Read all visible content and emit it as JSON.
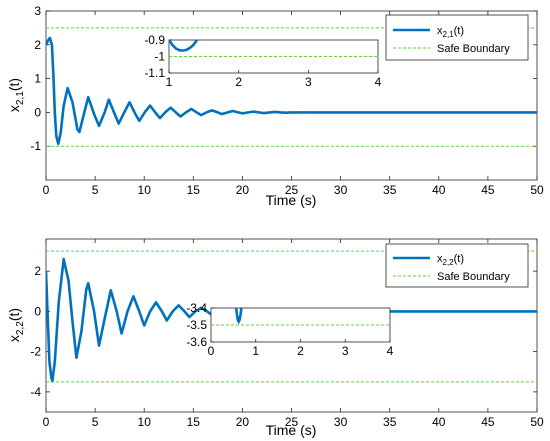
{
  "chart_data": [
    {
      "type": "line",
      "xlabel": "Time (s)",
      "ylabel_main": "x",
      "ylabel_sub": "2,1",
      "ylabel_tail": "(t)",
      "xlim": [
        0,
        50
      ],
      "ylim": [
        -2,
        3
      ],
      "x_ticks": [
        "0",
        "5",
        "10",
        "15",
        "20",
        "25",
        "30",
        "35",
        "40",
        "45",
        "50"
      ],
      "y_ticks": [
        "-1",
        "0",
        "1",
        "2",
        "3"
      ],
      "y_tick_values": [
        -1,
        0,
        1,
        2,
        3
      ],
      "series": [
        {
          "name_main": "x",
          "name_sub": "2,1",
          "name_tail": "(t)",
          "color": "#0072BD",
          "style": "solid",
          "points": [
            [
              0,
              2.0
            ],
            [
              0.25,
              2.15
            ],
            [
              0.4,
              2.2
            ],
            [
              0.6,
              2.0
            ],
            [
              0.75,
              1.1
            ],
            [
              0.9,
              0.0
            ],
            [
              1.05,
              -0.7
            ],
            [
              1.25,
              -0.93
            ],
            [
              1.5,
              -0.6
            ],
            [
              1.8,
              0.2
            ],
            [
              2.2,
              0.72
            ],
            [
              2.7,
              0.3
            ],
            [
              3.2,
              -0.5
            ],
            [
              3.4,
              -0.58
            ],
            [
              3.9,
              0.0
            ],
            [
              4.3,
              0.45
            ],
            [
              4.9,
              -0.05
            ],
            [
              5.4,
              -0.4
            ],
            [
              6.0,
              0.02
            ],
            [
              6.4,
              0.38
            ],
            [
              7.0,
              -0.05
            ],
            [
              7.4,
              -0.33
            ],
            [
              8.0,
              0.02
            ],
            [
              8.5,
              0.3
            ],
            [
              9.1,
              -0.05
            ],
            [
              9.5,
              -0.25
            ],
            [
              10.1,
              0.02
            ],
            [
              10.6,
              0.2
            ],
            [
              11.2,
              -0.03
            ],
            [
              11.6,
              -0.17
            ],
            [
              12.2,
              0.02
            ],
            [
              12.7,
              0.14
            ],
            [
              13.3,
              -0.02
            ],
            [
              13.7,
              -0.12
            ],
            [
              14.3,
              0.01
            ],
            [
              14.8,
              0.1
            ],
            [
              15.4,
              -0.01
            ],
            [
              15.8,
              -0.08
            ],
            [
              16.4,
              0.01
            ],
            [
              16.9,
              0.06
            ],
            [
              17.5,
              0.0
            ],
            [
              17.9,
              -0.05
            ],
            [
              18.5,
              0.0
            ],
            [
              19.0,
              0.04
            ],
            [
              19.6,
              0.0
            ],
            [
              20.0,
              -0.03
            ],
            [
              20.6,
              0.0
            ],
            [
              21.1,
              0.025
            ],
            [
              21.7,
              0.0
            ],
            [
              22.2,
              -0.02
            ],
            [
              22.8,
              0.0
            ],
            [
              23.3,
              0.015
            ],
            [
              23.9,
              0.0
            ],
            [
              24.4,
              -0.01
            ],
            [
              25.0,
              0.0
            ],
            [
              50,
              0.0
            ]
          ]
        },
        {
          "name": "Safe Boundary",
          "color": "#55DD33",
          "style": "dashed",
          "hlines": [
            2.5,
            -1
          ]
        }
      ],
      "legend_position": "top-right",
      "inset": {
        "xlim": [
          1,
          4
        ],
        "ylim": [
          -1.1,
          -0.9
        ],
        "x_ticks": [
          "1",
          "2",
          "3",
          "4"
        ],
        "y_ticks": [
          "-0.9",
          "-1",
          "-1.1"
        ],
        "y_tick_values": [
          -0.9,
          -1,
          -1.1
        ],
        "boundary": -1,
        "points": [
          [
            1.0,
            -0.9
          ],
          [
            1.05,
            -0.93
          ],
          [
            1.1,
            -0.952
          ],
          [
            1.15,
            -0.962
          ],
          [
            1.2,
            -0.964
          ],
          [
            1.25,
            -0.96
          ],
          [
            1.3,
            -0.948
          ],
          [
            1.35,
            -0.93
          ],
          [
            1.4,
            -0.9
          ]
        ]
      }
    },
    {
      "type": "line",
      "xlabel": "Time (s)",
      "ylabel_main": "x",
      "ylabel_sub": "2,2",
      "ylabel_tail": "(t)",
      "xlim": [
        0,
        50
      ],
      "ylim": [
        -5,
        3.6
      ],
      "x_ticks": [
        "0",
        "5",
        "10",
        "15",
        "20",
        "25",
        "30",
        "35",
        "40",
        "45",
        "50"
      ],
      "y_ticks": [
        "-4",
        "-2",
        "0",
        "2"
      ],
      "y_tick_values": [
        -4,
        -2,
        0,
        2
      ],
      "series": [
        {
          "name_main": "x",
          "name_sub": "2,2",
          "name_tail": "(t)",
          "color": "#0072BD",
          "style": "solid",
          "points": [
            [
              0,
              2.0
            ],
            [
              0.15,
              0.0
            ],
            [
              0.35,
              -2.5
            ],
            [
              0.55,
              -3.3
            ],
            [
              0.65,
              -3.45
            ],
            [
              0.9,
              -2.5
            ],
            [
              1.3,
              0.5
            ],
            [
              1.8,
              2.6
            ],
            [
              2.3,
              1.5
            ],
            [
              2.7,
              -0.5
            ],
            [
              3.1,
              -2.3
            ],
            [
              3.6,
              -1.0
            ],
            [
              4.1,
              1.1
            ],
            [
              4.3,
              1.4
            ],
            [
              4.9,
              0.0
            ],
            [
              5.4,
              -1.7
            ],
            [
              6.0,
              -0.3
            ],
            [
              6.6,
              1.05
            ],
            [
              7.2,
              0.0
            ],
            [
              7.7,
              -1.1
            ],
            [
              8.3,
              0.0
            ],
            [
              8.9,
              0.75
            ],
            [
              9.5,
              0.0
            ],
            [
              10.0,
              -0.7
            ],
            [
              10.6,
              0.0
            ],
            [
              11.2,
              0.45
            ],
            [
              11.8,
              0.0
            ],
            [
              12.3,
              -0.45
            ],
            [
              12.9,
              0.0
            ],
            [
              13.5,
              0.3
            ],
            [
              14.1,
              0.0
            ],
            [
              14.6,
              -0.28
            ],
            [
              15.2,
              0.0
            ],
            [
              15.8,
              0.18
            ],
            [
              16.4,
              0.0
            ],
            [
              16.9,
              -0.18
            ],
            [
              17.5,
              0.0
            ],
            [
              18.1,
              0.12
            ],
            [
              18.7,
              0.0
            ],
            [
              19.2,
              -0.1
            ],
            [
              19.8,
              0.0
            ],
            [
              20.4,
              0.07
            ],
            [
              21.0,
              0.0
            ],
            [
              21.5,
              -0.06
            ],
            [
              22.1,
              0.0
            ],
            [
              22.7,
              0.04
            ],
            [
              23.3,
              0.0
            ],
            [
              23.8,
              -0.03
            ],
            [
              24.4,
              0.0
            ],
            [
              25.0,
              0.02
            ],
            [
              25.6,
              0.0
            ],
            [
              26.2,
              -0.015
            ],
            [
              27.0,
              0.0
            ],
            [
              50,
              0.0
            ]
          ]
        },
        {
          "name": "Safe Boundary",
          "color": "#55DD33",
          "style": "dashed",
          "hlines": [
            3.0,
            -3.5
          ]
        }
      ],
      "legend_position": "top-right",
      "inset": {
        "xlim": [
          0,
          4
        ],
        "ylim": [
          -3.6,
          -3.4
        ],
        "x_ticks": [
          "0",
          "1",
          "2",
          "3",
          "4"
        ],
        "y_ticks": [
          "-3.4",
          "-3.5",
          "-3.6"
        ],
        "y_tick_values": [
          -3.4,
          -3.5,
          -3.6
        ],
        "boundary": -3.5,
        "points": [
          [
            0.56,
            -3.4
          ],
          [
            0.58,
            -3.44
          ],
          [
            0.6,
            -3.47
          ],
          [
            0.62,
            -3.48
          ],
          [
            0.64,
            -3.47
          ],
          [
            0.66,
            -3.44
          ],
          [
            0.68,
            -3.4
          ]
        ]
      }
    }
  ]
}
